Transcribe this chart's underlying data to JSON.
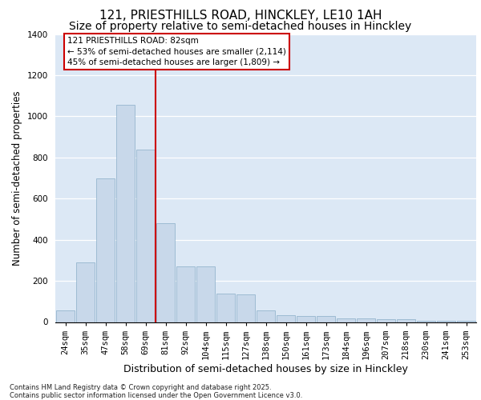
{
  "title_line1": "121, PRIESTHILLS ROAD, HINCKLEY, LE10 1AH",
  "title_line2": "Size of property relative to semi-detached houses in Hinckley",
  "xlabel": "Distribution of semi-detached houses by size in Hinckley",
  "ylabel": "Number of semi-detached properties",
  "bar_color": "#c8d8ea",
  "bar_edge_color": "#8aaec8",
  "vline_color": "#cc0000",
  "annotation_text": "121 PRIESTHILLS ROAD: 82sqm\n← 53% of semi-detached houses are smaller (2,114)\n45% of semi-detached houses are larger (1,809) →",
  "annotation_box_edgecolor": "#cc0000",
  "categories": [
    "24sqm",
    "35sqm",
    "47sqm",
    "58sqm",
    "69sqm",
    "81sqm",
    "92sqm",
    "104sqm",
    "115sqm",
    "127sqm",
    "138sqm",
    "150sqm",
    "161sqm",
    "173sqm",
    "184sqm",
    "196sqm",
    "207sqm",
    "218sqm",
    "230sqm",
    "241sqm",
    "253sqm"
  ],
  "values": [
    58,
    290,
    700,
    1055,
    840,
    480,
    270,
    270,
    140,
    133,
    58,
    33,
    28,
    28,
    18,
    18,
    13,
    13,
    5,
    4,
    4
  ],
  "ylim": [
    0,
    1400
  ],
  "yticks": [
    0,
    200,
    400,
    600,
    800,
    1000,
    1200,
    1400
  ],
  "plot_bg_color": "#dce8f5",
  "footer_text": "Contains HM Land Registry data © Crown copyright and database right 2025.\nContains public sector information licensed under the Open Government Licence v3.0.",
  "title_fontsize": 11,
  "subtitle_fontsize": 10,
  "ylabel_fontsize": 8.5,
  "xlabel_fontsize": 9,
  "tick_fontsize": 7.5,
  "annot_fontsize": 7.5,
  "vline_pos": 4.5
}
